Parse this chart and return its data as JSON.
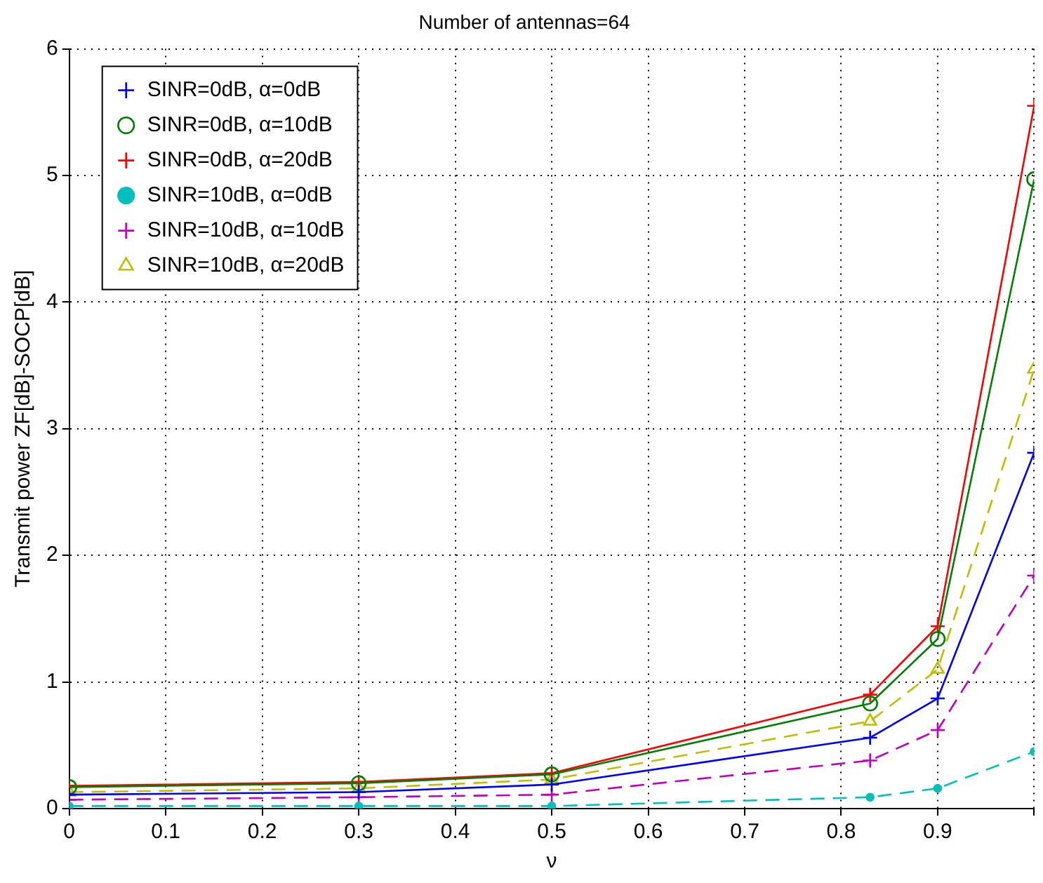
{
  "chart_data": {
    "type": "line",
    "title": "Number of antennas=64",
    "xlabel": "ν",
    "ylabel": "Transmit power ZF[dB]-SOCP[dB]",
    "x": [
      0,
      0.3,
      0.5,
      0.83,
      0.9,
      1
    ],
    "xlim": [
      0,
      1
    ],
    "xticks": [
      0,
      0.1,
      0.2,
      0.3,
      0.4,
      0.5,
      0.6,
      0.7,
      0.8,
      0.9,
      {
        "value": 1,
        "label": null
      }
    ],
    "ylim": [
      0,
      6
    ],
    "yticks": [
      0,
      1,
      2,
      3,
      4,
      5,
      6
    ],
    "grid": true,
    "legend": "top left",
    "series": [
      {
        "name": "SINR=0dB, α=0dB",
        "color": "#0000ff",
        "marker": "cross",
        "line_style": "solid",
        "values": [
          0.11,
          0.13,
          0.19,
          0.56,
          0.87,
          2.81
        ]
      },
      {
        "name": "SINR=0dB, α=10dB",
        "color": "#008000",
        "marker": "circle",
        "line_style": "solid",
        "values": [
          0.17,
          0.2,
          0.27,
          0.83,
          1.34,
          4.97
        ]
      },
      {
        "name": "SINR=0dB, α=20dB",
        "color": "#ff0000",
        "marker": "cross",
        "line_style": "solid",
        "values": [
          0.18,
          0.21,
          0.28,
          0.9,
          1.44,
          5.55
        ]
      },
      {
        "name": "SINR=10dB, α=0dB",
        "color": "#00bfbf",
        "marker": "circle",
        "line_style": "dashed",
        "values": [
          0.02,
          0.02,
          0.02,
          0.09,
          0.16,
          0.45
        ]
      },
      {
        "name": "SINR=10dB, α=10dB",
        "color": "#bf00bf",
        "marker": "cross",
        "line_style": "dashed",
        "values": [
          0.07,
          0.09,
          0.11,
          0.38,
          0.62,
          1.84
        ]
      },
      {
        "name": "SINR=10dB, α=20dB",
        "color": "#bfbf00",
        "marker": "triangle",
        "line_style": "dashed",
        "values": [
          0.13,
          0.16,
          0.23,
          0.69,
          1.1,
          3.47
        ]
      }
    ]
  }
}
